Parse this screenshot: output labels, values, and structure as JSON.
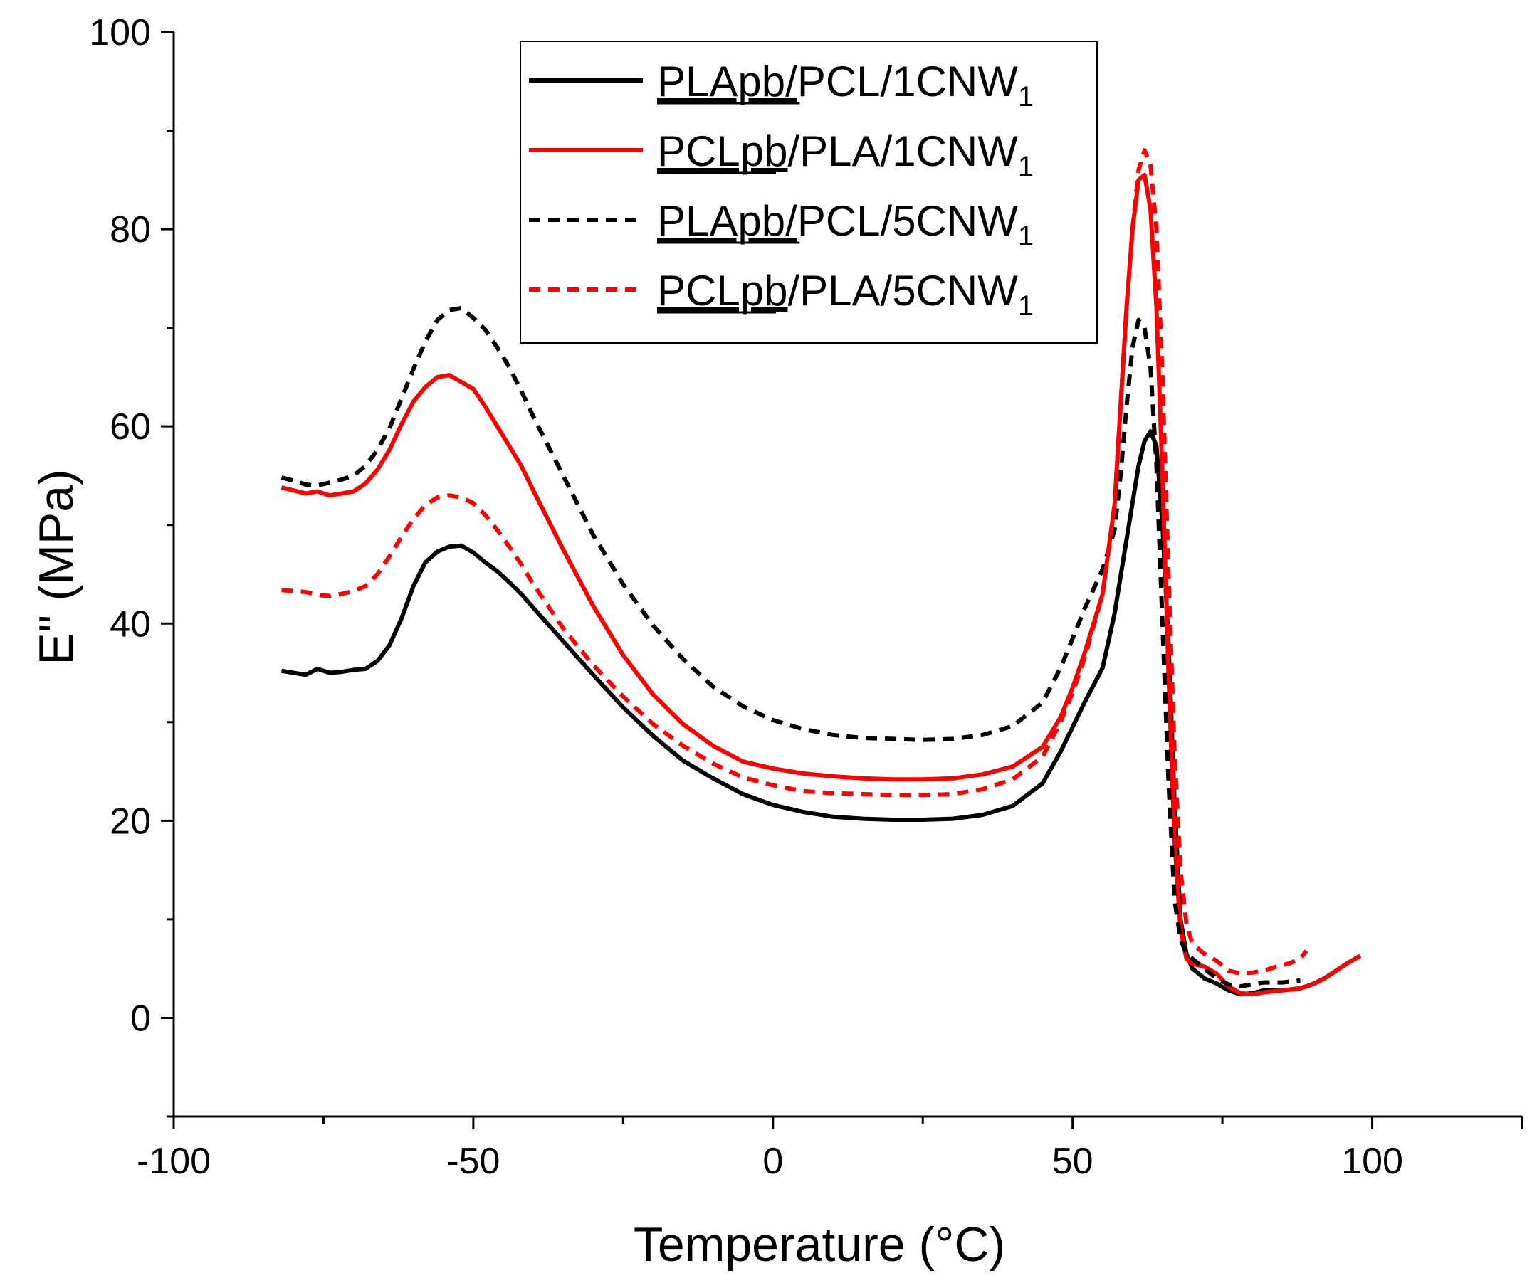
{
  "chart_data": {
    "type": "line",
    "title": "",
    "xlabel": "Temperature (°C)",
    "ylabel": "E'' (MPa)",
    "xlim": [
      -100,
      125
    ],
    "ylim": [
      -10,
      100
    ],
    "xticks": [
      -100,
      -50,
      0,
      50,
      100
    ],
    "xtick_labels": [
      "-100",
      "-50",
      "0",
      "50",
      "100"
    ],
    "yticks": [
      0,
      20,
      40,
      60,
      80,
      100
    ],
    "ytick_labels": [
      "0",
      "20",
      "40",
      "60",
      "80",
      "100"
    ],
    "legend_position": "top-center",
    "series": [
      {
        "name": "PLApb/PCL/1CNW1",
        "legend_underlined": "PLApb/",
        "legend_main": "PCL/1CNW",
        "legend_sub": "1",
        "color": "#000000",
        "dash": "solid",
        "x": [
          -82,
          -80,
          -78,
          -76,
          -74,
          -72,
          -70,
          -68,
          -66,
          -64,
          -62,
          -60,
          -58,
          -56,
          -54,
          -52,
          -50,
          -48,
          -46,
          -44,
          -42,
          -40,
          -35,
          -30,
          -25,
          -20,
          -15,
          -10,
          -5,
          0,
          5,
          10,
          15,
          20,
          25,
          30,
          35,
          40,
          45,
          48,
          50,
          52,
          55,
          57,
          59,
          61,
          62,
          63,
          64,
          65,
          66,
          67,
          68,
          69,
          70,
          72,
          74,
          76,
          78,
          80,
          82,
          85,
          88,
          90,
          92,
          94,
          96,
          98
        ],
        "y": [
          35.2,
          35.0,
          34.8,
          35.4,
          35.0,
          35.1,
          35.3,
          35.4,
          36.2,
          37.8,
          40.5,
          43.8,
          46.2,
          47.3,
          47.8,
          47.9,
          47.2,
          46.2,
          45.3,
          44.2,
          43.0,
          41.6,
          38.2,
          34.8,
          31.5,
          28.6,
          26.1,
          24.3,
          22.7,
          21.6,
          20.9,
          20.4,
          20.2,
          20.1,
          20.1,
          20.2,
          20.6,
          21.5,
          23.8,
          27.0,
          29.5,
          32.0,
          35.5,
          41.0,
          48.5,
          56.0,
          58.5,
          59.5,
          58.0,
          50.0,
          38.0,
          22.0,
          10.0,
          6.5,
          5.0,
          4.0,
          3.5,
          2.8,
          2.4,
          2.5,
          2.8,
          2.8,
          3.0,
          3.4,
          4.0,
          4.8,
          5.6,
          6.3
        ]
      },
      {
        "name": "PCLpb/PLA/1CNW1",
        "legend_underlined": "PCLpb",
        "legend_main": "/PLA/1CNW",
        "legend_sub": "1",
        "color": "#ff0000",
        "dash": "solid",
        "x": [
          -82,
          -80,
          -78,
          -76,
          -74,
          -72,
          -70,
          -68,
          -66,
          -64,
          -62,
          -60,
          -58,
          -56,
          -54,
          -52,
          -50,
          -48,
          -46,
          -44,
          -42,
          -40,
          -35,
          -30,
          -25,
          -20,
          -15,
          -10,
          -5,
          0,
          5,
          10,
          15,
          20,
          25,
          30,
          35,
          40,
          45,
          48,
          50,
          52,
          55,
          57,
          58,
          59,
          60,
          61,
          62,
          63,
          64,
          65,
          66,
          67,
          68,
          69,
          70,
          72,
          74,
          76,
          78,
          80,
          82,
          85,
          88,
          90,
          92,
          94,
          96,
          98
        ],
        "y": [
          53.8,
          53.5,
          53.2,
          53.4,
          53.0,
          53.2,
          53.4,
          54.2,
          55.6,
          57.6,
          60.2,
          62.5,
          64.0,
          65.0,
          65.2,
          64.5,
          63.8,
          62.0,
          60.0,
          58.0,
          56.0,
          53.5,
          47.5,
          41.8,
          36.8,
          32.8,
          29.8,
          27.6,
          26.0,
          25.3,
          24.8,
          24.5,
          24.3,
          24.2,
          24.2,
          24.3,
          24.7,
          25.5,
          27.5,
          30.5,
          33.5,
          37.0,
          43.0,
          52.0,
          62.0,
          72.0,
          80.0,
          85.0,
          85.5,
          82.0,
          72.0,
          55.0,
          35.0,
          18.0,
          9.0,
          6.0,
          5.5,
          5.2,
          4.5,
          3.2,
          2.5,
          2.4,
          2.6,
          2.8,
          3.0,
          3.4,
          4.0,
          4.8,
          5.6,
          6.3
        ]
      },
      {
        "name": "PLApb/PCL/5CNW1",
        "legend_underlined": "PLApb/",
        "legend_main": "PCL/5CNW",
        "legend_sub": "1",
        "color": "#000000",
        "dash": "dashed",
        "x": [
          -82,
          -80,
          -78,
          -76,
          -74,
          -72,
          -70,
          -68,
          -66,
          -64,
          -62,
          -60,
          -58,
          -56,
          -54,
          -52,
          -50,
          -48,
          -46,
          -44,
          -42,
          -40,
          -35,
          -30,
          -25,
          -20,
          -15,
          -10,
          -5,
          0,
          5,
          10,
          15,
          20,
          25,
          30,
          35,
          40,
          45,
          48,
          50,
          52,
          55,
          57,
          58,
          59,
          60,
          61,
          62,
          63,
          64,
          65,
          66,
          67,
          68,
          69,
          70,
          72,
          74,
          76,
          78,
          80,
          82,
          85,
          88
        ],
        "y": [
          54.8,
          54.5,
          54.1,
          54.0,
          54.3,
          54.6,
          55.0,
          56.0,
          57.6,
          59.8,
          62.8,
          65.8,
          68.6,
          70.8,
          71.8,
          72.0,
          71.0,
          69.8,
          68.0,
          66.0,
          63.6,
          61.0,
          55.0,
          49.0,
          44.0,
          39.8,
          36.4,
          33.6,
          31.6,
          30.2,
          29.3,
          28.7,
          28.4,
          28.3,
          28.2,
          28.3,
          28.7,
          29.6,
          32.0,
          35.5,
          38.5,
          41.5,
          45.5,
          49.5,
          55.0,
          62.0,
          68.0,
          70.8,
          70.0,
          66.0,
          56.0,
          40.0,
          24.0,
          12.0,
          8.0,
          6.5,
          6.0,
          5.0,
          4.0,
          3.4,
          3.2,
          3.4,
          3.6,
          3.6,
          3.8
        ]
      },
      {
        "name": "PCLpb/PLA/5CNW1",
        "legend_underlined": "PCLpb",
        "legend_main": "/PLA/5CNW",
        "legend_sub": "1",
        "color": "#ff0000",
        "dash": "dashed",
        "x": [
          -82,
          -80,
          -78,
          -76,
          -74,
          -72,
          -70,
          -68,
          -66,
          -64,
          -62,
          -60,
          -58,
          -56,
          -54,
          -52,
          -50,
          -48,
          -46,
          -44,
          -42,
          -40,
          -35,
          -30,
          -25,
          -20,
          -15,
          -10,
          -5,
          0,
          5,
          10,
          15,
          20,
          25,
          30,
          35,
          40,
          45,
          48,
          50,
          52,
          55,
          57,
          58,
          59,
          60,
          61,
          62,
          63,
          64,
          65,
          66,
          67,
          68,
          69,
          70,
          72,
          74,
          76,
          78,
          80,
          82,
          84,
          86,
          88,
          89
        ],
        "y": [
          43.4,
          43.3,
          43.2,
          42.9,
          42.8,
          43.0,
          43.3,
          43.8,
          45.0,
          46.8,
          48.8,
          50.6,
          52.0,
          52.8,
          53.0,
          52.8,
          52.2,
          51.0,
          49.5,
          47.8,
          46.0,
          44.0,
          39.5,
          35.8,
          32.6,
          29.8,
          27.6,
          25.8,
          24.4,
          23.6,
          23.0,
          22.8,
          22.7,
          22.6,
          22.6,
          22.7,
          23.2,
          24.2,
          26.5,
          30.0,
          33.0,
          36.5,
          43.0,
          52.0,
          62.0,
          72.0,
          80.0,
          86.0,
          88.0,
          86.5,
          80.0,
          65.0,
          45.0,
          27.0,
          15.0,
          9.5,
          7.5,
          6.5,
          5.8,
          4.8,
          4.5,
          4.6,
          4.8,
          5.2,
          5.5,
          6.0,
          6.8
        ]
      }
    ]
  }
}
